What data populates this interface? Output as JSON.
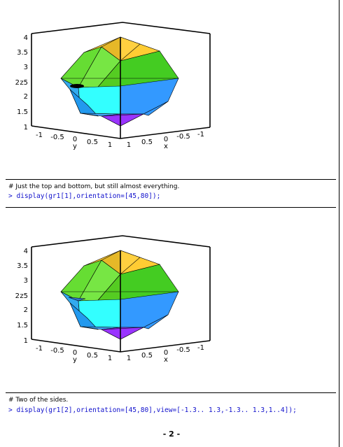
{
  "colors": {
    "top": "#ffcc33",
    "top_dark": "#e0b020",
    "upper": "#66dd33",
    "upper_light": "#88ee55",
    "upper_dark": "#55cc22",
    "middle": "#33ffff",
    "middle_blue": "#3399ff",
    "lower": "#33aaee",
    "bottom": "#9933ff",
    "command": "#1010cc"
  },
  "plots": [
    {
      "z_ticks": [
        "4",
        "3.5",
        "3",
        "2",
        "z5",
        "2",
        "1.5",
        "1"
      ],
      "y_ticks": [
        "-1",
        "-0.5",
        "0",
        "0.5",
        "1"
      ],
      "x_ticks": [
        "1",
        "0.5",
        "0",
        "-0.5",
        "-1"
      ],
      "y_label": "y",
      "x_label": "x",
      "has_bottom_marker": false
    },
    {
      "z_ticks": [
        "4",
        "3.5",
        "3",
        "2",
        "z5",
        "2",
        "1.5",
        "1"
      ],
      "y_ticks": [
        "-1",
        "-0.5",
        "0",
        "0.5",
        "1"
      ],
      "x_ticks": [
        "1",
        "0.5",
        "0",
        "-0.5",
        "-1"
      ],
      "y_label": "y",
      "x_label": "x",
      "has_bottom_marker": false
    }
  ],
  "blocks": [
    {
      "comment": "# Just the top and bottom, but still almost everything.",
      "command": "> display(gr1[1],orientation=[45,80]);"
    },
    {
      "comment": "# Two of the sides.",
      "command": "> display(gr1[2],orientation=[45,80],view=[-1.3.. 1.3,-1.3.. 1.3,1..4]);"
    }
  ],
  "page_number": "- 2 -"
}
